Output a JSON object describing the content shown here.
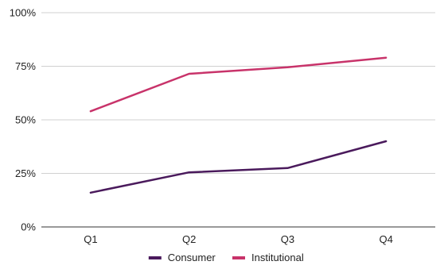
{
  "chart_data": {
    "type": "line",
    "categories": [
      "Q1",
      "Q2",
      "Q3",
      "Q4"
    ],
    "y_ticks": [
      "0%",
      "25%",
      "50%",
      "75%",
      "100%"
    ],
    "ylim": [
      0,
      100
    ],
    "grid": true,
    "legend_position": "bottom",
    "series": [
      {
        "name": "Consumer",
        "color": "#4a1a5c",
        "values": [
          16,
          25.5,
          27.5,
          40
        ]
      },
      {
        "name": "Institutional",
        "color": "#c8336a",
        "values": [
          54,
          71.5,
          74.5,
          79
        ]
      }
    ]
  }
}
